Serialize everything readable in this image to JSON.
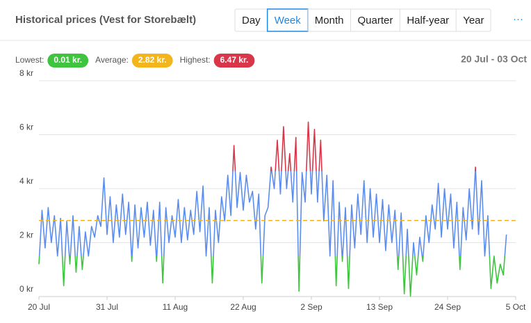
{
  "header": {
    "title": "Historical prices (Vest for Storebælt)",
    "tabs": [
      "Day",
      "Week",
      "Month",
      "Quarter",
      "Half-year",
      "Year"
    ],
    "active_tab": 1,
    "menu": "···"
  },
  "stats": [
    {
      "name": "Lowest:",
      "value": 0.01,
      "label": "0.01 kr.",
      "color": "#3ec43e"
    },
    {
      "name": "Average:",
      "value": 2.82,
      "label": "2.82 kr.",
      "color": "#f2b51c"
    },
    {
      "name": "Highest:",
      "value": 6.47,
      "label": "6.47 kr.",
      "color": "#d9364a"
    }
  ],
  "date_range": "20 Jul - 03 Oct",
  "chart_data": {
    "type": "line",
    "x": [
      0,
      0.5,
      1,
      1.5,
      2,
      2.5,
      3,
      3.5,
      4,
      4.5,
      5,
      5.5,
      6,
      6.5,
      7,
      7.5,
      8,
      8.5,
      9,
      9.5,
      10,
      10.5,
      11,
      11.5,
      12,
      12.5,
      13,
      13.5,
      14,
      14.5,
      15,
      15.5,
      16,
      16.5,
      17,
      17.5,
      18,
      18.5,
      19,
      19.5,
      20,
      20.5,
      21,
      21.5,
      22,
      22.5,
      23,
      23.5,
      24,
      24.5,
      25,
      25.5,
      26,
      26.5,
      27,
      27.5,
      28,
      28.5,
      29,
      29.5,
      30,
      30.5,
      31,
      31.5,
      32,
      32.5,
      33,
      33.5,
      34,
      34.5,
      35,
      35.5,
      36,
      36.5,
      37,
      37.5,
      38,
      38.5,
      39,
      39.5,
      40,
      40.5,
      41,
      41.5,
      42,
      42.5,
      43,
      43.5,
      44,
      44.5,
      45,
      45.5,
      46,
      46.5,
      47,
      47.5,
      48,
      48.5,
      49,
      49.5,
      50,
      50.5,
      51,
      51.5,
      52,
      52.5,
      53,
      53.5,
      54,
      54.5,
      55,
      55.5,
      56,
      56.5,
      57,
      57.5,
      58,
      58.5,
      59,
      59.5,
      60,
      60.5,
      61,
      61.5,
      62,
      62.5,
      63,
      63.5,
      64,
      64.5,
      65,
      65.5,
      66,
      66.5,
      67,
      67.5,
      68,
      68.5,
      69,
      69.5,
      70,
      70.5,
      71,
      71.5,
      72,
      72.5,
      73,
      73.5,
      74,
      74.5,
      75,
      75.5
    ],
    "series": [
      {
        "name": "Price",
        "color": "#5b8def",
        "low_color": "#3ec43e",
        "high_color": "#d9364a",
        "low_threshold": 1.5,
        "high_threshold": 4.65,
        "values": [
          1.2,
          3.2,
          1.8,
          3.3,
          2.0,
          3.0,
          1.5,
          2.9,
          0.4,
          2.8,
          1.2,
          3.0,
          0.9,
          2.6,
          1.0,
          2.4,
          1.5,
          2.6,
          2.2,
          3.0,
          2.6,
          4.4,
          2.3,
          3.7,
          2.0,
          3.4,
          2.2,
          3.8,
          2.3,
          3.5,
          1.3,
          3.4,
          1.8,
          3.3,
          2.2,
          3.5,
          1.9,
          3.2,
          1.3,
          3.5,
          0.5,
          3.3,
          2.0,
          3.0,
          2.2,
          3.6,
          2.0,
          3.3,
          2.1,
          3.2,
          2.3,
          3.9,
          2.4,
          4.1,
          1.5,
          3.3,
          0.5,
          3.2,
          2.0,
          3.7,
          2.8,
          4.5,
          3.0,
          5.6,
          3.3,
          4.6,
          3.2,
          4.5,
          3.5,
          3.9,
          2.5,
          3.8,
          0.5,
          3.0,
          3.3,
          4.8,
          4.0,
          5.8,
          3.8,
          6.3,
          4.0,
          5.3,
          3.5,
          5.9,
          0.2,
          4.6,
          3.5,
          6.47,
          3.8,
          6.2,
          3.5,
          5.8,
          2.8,
          4.5,
          1.5,
          4.3,
          0.4,
          3.5,
          1.3,
          3.3,
          0.3,
          3.4,
          1.8,
          3.8,
          2.3,
          4.3,
          2.0,
          4.0,
          2.2,
          3.8,
          2.0,
          3.6,
          1.7,
          3.4,
          2.0,
          3.2,
          1.0,
          3.1,
          0.1,
          2.5,
          0.01,
          2.0,
          0.8,
          2.2,
          1.3,
          3.0,
          2.0,
          3.4,
          2.5,
          4.2,
          2.2,
          4.0,
          2.5,
          3.8,
          1.8,
          3.5,
          1.0,
          3.3,
          2.1,
          4.0,
          2.5,
          4.8,
          2.3,
          4.3,
          1.5,
          3.0,
          0.3,
          1.5,
          0.5,
          1.2,
          0.8,
          2.3
        ]
      }
    ],
    "average_color": "#f2b51c",
    "xlim": [
      0,
      77
    ],
    "xticks": [
      {
        "value": 0,
        "label": "20 Jul"
      },
      {
        "value": 11,
        "label": "31 Jul"
      },
      {
        "value": 22,
        "label": "11 Aug"
      },
      {
        "value": 33,
        "label": "22 Aug"
      },
      {
        "value": 44,
        "label": "2 Sep"
      },
      {
        "value": 55,
        "label": "13 Sep"
      },
      {
        "value": 66,
        "label": "24 Sep"
      },
      {
        "value": 77,
        "label": "5 Oct"
      }
    ],
    "ylim": [
      0,
      8
    ],
    "yticks": [
      {
        "value": 0,
        "label": "0 kr"
      },
      {
        "value": 2,
        "label": "2 kr"
      },
      {
        "value": 4,
        "label": "4 kr"
      },
      {
        "value": 6,
        "label": "6 kr"
      },
      {
        "value": 8,
        "label": "8 kr"
      }
    ],
    "grid": true
  }
}
